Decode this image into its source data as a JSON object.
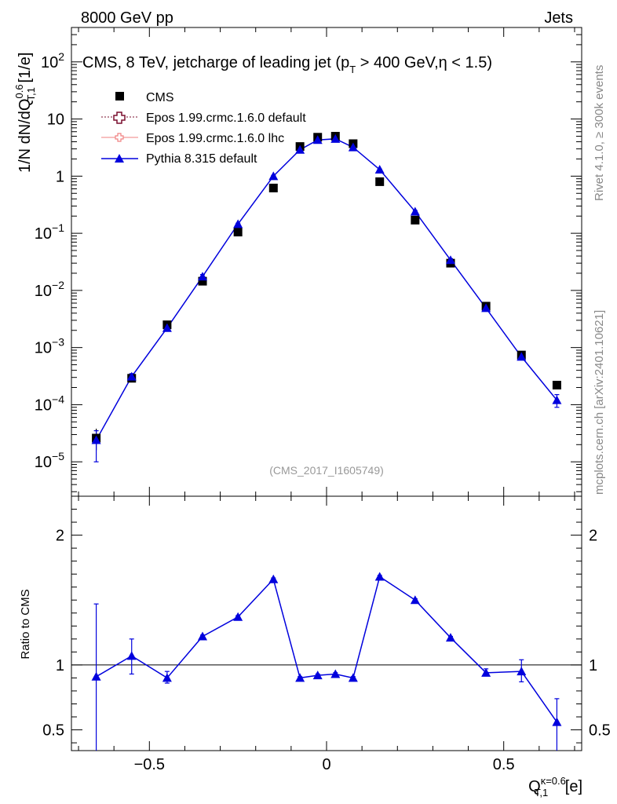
{
  "header": {
    "left": "8000 GeV pp",
    "right": "Jets"
  },
  "side_labels": {
    "rivet": "Rivet 4.1.0, ≥ 300k events",
    "mcplots": "mcplots.cern.ch [arXiv:2401.10621]"
  },
  "chart_data": [
    {
      "type": "scatter",
      "title": "CMS, 8 TeV, jetcharge of leading jet (pT > 400 GeV,η < 1.5)",
      "title_parts": {
        "a": "CMS, 8 TeV, jetcharge of leading jet (p",
        "sub": "T",
        "b": " > 400 GeV,η < 1.5)"
      },
      "ylabel": "1/N dN/dQ_T,1^0.6 [1/e]",
      "ylabel_parts": {
        "main": "1/N dN/dQ",
        "sup": "0.6",
        "sub": "T,1",
        "unit": " [1/e]"
      },
      "yscale": "log",
      "xlim": [
        -0.72,
        0.72
      ],
      "ylim": [
        2.5e-06,
        400
      ],
      "yticks": [
        {
          "v": 1e-05,
          "base": "10",
          "exp": "−5"
        },
        {
          "v": 0.0001,
          "base": "10",
          "exp": "−4"
        },
        {
          "v": 0.001,
          "base": "10",
          "exp": "−3"
        },
        {
          "v": 0.01,
          "base": "10",
          "exp": "−2"
        },
        {
          "v": 0.1,
          "base": "10",
          "exp": "−1"
        },
        {
          "v": 1,
          "base": "1",
          "exp": ""
        },
        {
          "v": 10,
          "base": "10",
          "exp": ""
        },
        {
          "v": 100,
          "base": "10",
          "exp": "2"
        }
      ],
      "watermark": "(CMS_2017_I1605749)",
      "legend_position": "top-left",
      "legend": [
        {
          "name": "CMS",
          "style": "black-square"
        },
        {
          "name": "Epos 1.99.crmc.1.6.0 default",
          "style": "dark-red-dotted-open-cross"
        },
        {
          "name": "Epos 1.99.crmc.1.6.0 lhc",
          "style": "pink-solid-open-cross"
        },
        {
          "name": "Pythia 8.315 default",
          "style": "blue-solid-triangle"
        }
      ],
      "series": [
        {
          "name": "CMS",
          "color": "#000000",
          "x": [
            -0.65,
            -0.55,
            -0.45,
            -0.35,
            -0.25,
            -0.15,
            -0.075,
            -0.025,
            0.025,
            0.075,
            0.15,
            0.25,
            0.35,
            0.45,
            0.55,
            0.65
          ],
          "y": [
            2.6e-05,
            0.00029,
            0.0025,
            0.0145,
            0.105,
            0.62,
            3.3,
            4.8,
            5.0,
            3.7,
            0.8,
            0.17,
            0.03,
            0.0053,
            0.00074,
            0.00022
          ],
          "yerr_low": [
            1.6e-05,
            0.00026,
            0.0023,
            0.0138,
            0.1,
            0.6,
            3.2,
            4.7,
            4.9,
            3.6,
            0.78,
            0.165,
            0.029,
            0.0051,
            0.0007,
            0.00021
          ],
          "yerr_high": [
            3.8e-05,
            0.00032,
            0.0027,
            0.0152,
            0.11,
            0.64,
            3.4,
            4.9,
            5.1,
            3.8,
            0.82,
            0.175,
            0.031,
            0.0055,
            0.00078,
            0.00023
          ]
        },
        {
          "name": "Pythia 8.315 default",
          "color": "#0000dd",
          "x": [
            -0.65,
            -0.55,
            -0.45,
            -0.35,
            -0.25,
            -0.15,
            -0.075,
            -0.025,
            0.025,
            0.075,
            0.15,
            0.25,
            0.35,
            0.45,
            0.55,
            0.65
          ],
          "y": [
            2.4e-05,
            0.00031,
            0.0022,
            0.0175,
            0.145,
            1.0,
            2.9,
            4.3,
            4.5,
            3.2,
            1.3,
            0.24,
            0.034,
            0.0049,
            0.00069,
            0.00012
          ],
          "yerr_low": [
            1e-05,
            0.00027,
            0.002,
            0.016,
            0.14,
            0.97,
            2.8,
            4.2,
            4.4,
            3.1,
            1.27,
            0.23,
            0.032,
            0.0046,
            0.00064,
            9e-05
          ],
          "yerr_high": [
            3.5e-05,
            0.00035,
            0.0024,
            0.019,
            0.15,
            1.03,
            3.0,
            4.4,
            4.6,
            3.3,
            1.33,
            0.25,
            0.036,
            0.0052,
            0.00074,
            0.00015
          ]
        }
      ]
    },
    {
      "type": "line",
      "ylabel": "Ratio to CMS",
      "xlabel": "Q_T,1^κ=0.6 [e]",
      "xlabel_parts": {
        "main": "Q",
        "sup": "κ=0.6",
        "sub": "T,1",
        "unit": " [e]"
      },
      "xlim": [
        -0.72,
        0.72
      ],
      "ylim": [
        0.34,
        2.3
      ],
      "yticks": [
        0.5,
        1,
        2
      ],
      "ytick_labels": [
        "0.5",
        "1",
        "2"
      ],
      "xticks": [
        -0.5,
        0,
        0.5
      ],
      "xtick_labels": [
        "−0.5",
        "0",
        "0.5"
      ],
      "reference_line": 1,
      "series": [
        {
          "name": "Pythia 8.315 default / CMS",
          "color": "#0000dd",
          "x": [
            -0.65,
            -0.55,
            -0.45,
            -0.35,
            -0.25,
            -0.15,
            -0.075,
            -0.025,
            0.025,
            0.075,
            0.15,
            0.25,
            0.35,
            0.45,
            0.55,
            0.65
          ],
          "y": [
            0.91,
            1.07,
            0.9,
            1.22,
            1.37,
            1.66,
            0.9,
            0.92,
            0.93,
            0.9,
            1.68,
            1.5,
            1.21,
            0.94,
            0.95,
            0.56
          ],
          "yerr_low": [
            0.34,
            0.93,
            0.86,
            1.21,
            1.36,
            1.65,
            0.89,
            0.91,
            0.92,
            0.89,
            1.67,
            1.49,
            1.2,
            0.92,
            0.87,
            0.34
          ],
          "yerr_high": [
            1.47,
            1.2,
            0.95,
            1.23,
            1.38,
            1.67,
            0.91,
            0.93,
            0.94,
            0.91,
            1.69,
            1.51,
            1.22,
            0.97,
            1.04,
            0.74
          ]
        }
      ]
    }
  ]
}
